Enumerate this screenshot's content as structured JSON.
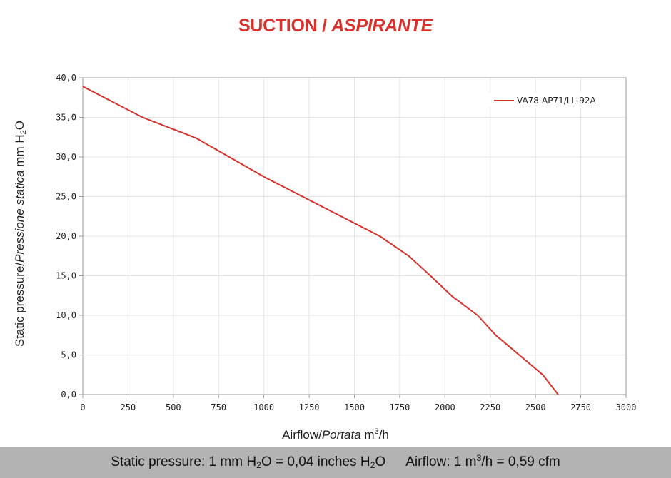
{
  "title": {
    "main": "SUCTION",
    "separator": " / ",
    "italic": "ASPIRANTE"
  },
  "y_axis": {
    "main": "Static pressure",
    "sep": "/",
    "italic": "Pressione statica",
    "unit_pre": " mm H",
    "unit_sub": "2",
    "unit_post": "O"
  },
  "x_axis": {
    "main": "Airflow",
    "sep": "/",
    "italic": "Portata",
    "unit_pre": " m",
    "unit_sup": "3",
    "unit_post": "/h"
  },
  "footer": {
    "p1": "Static pressure: 1 mm H",
    "s1": "2",
    "p2": "O = 0,04 inches H",
    "s2": "2",
    "p3": "O",
    "p4": "Airflow: 1 m",
    "sup": "3",
    "p5": "/h = 0,59 cfm"
  },
  "chart_data": {
    "type": "line",
    "x_ticks": [
      "0",
      "250",
      "500",
      "750",
      "1000",
      "1250",
      "1500",
      "1750",
      "2000",
      "2250",
      "2500",
      "2750",
      "3000"
    ],
    "y_ticks": [
      "0,0",
      "5,0",
      "10,0",
      "15,0",
      "20,0",
      "25,0",
      "30,0",
      "35,0",
      "40,0"
    ],
    "xlim": [
      0,
      3000
    ],
    "ylim": [
      0,
      40
    ],
    "grid": true,
    "legend": "top-right",
    "series": [
      {
        "name": "VA78-AP71/LL-92A",
        "color": "#d8322c",
        "x": [
          0,
          330,
          625,
          1000,
          1640,
          1800,
          1920,
          2040,
          2180,
          2280,
          2540,
          2625
        ],
        "y": [
          38.9,
          35.0,
          32.4,
          27.5,
          20.0,
          17.5,
          15.0,
          12.4,
          10.0,
          7.5,
          2.5,
          0.0
        ]
      }
    ]
  }
}
